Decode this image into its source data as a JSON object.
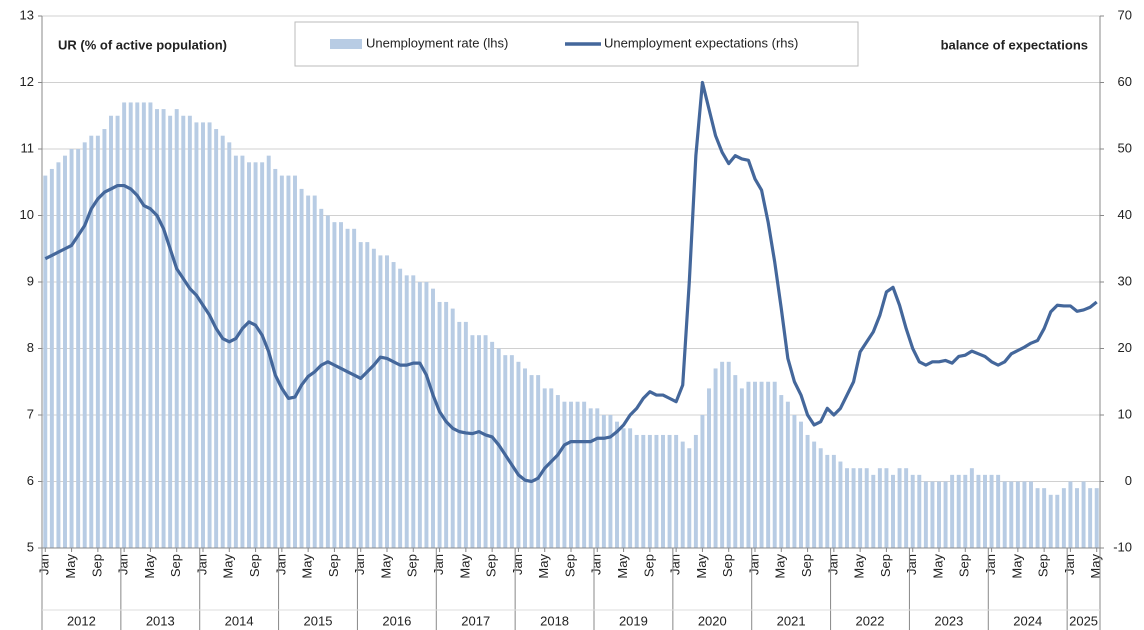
{
  "chart_data": {
    "type": "bar-line",
    "ylabel": "UR (% of active population)",
    "y2label": "balance of expectations",
    "categories": [
      "Jan",
      null,
      null,
      null,
      "May",
      null,
      null,
      null,
      "Sep",
      null,
      null,
      null,
      "Jan",
      null,
      null,
      null,
      "May",
      null,
      null,
      null,
      "Sep",
      null,
      null,
      null,
      "Jan",
      null,
      null,
      null,
      "May",
      null,
      null,
      null,
      "Sep",
      null,
      null,
      null,
      "Jan",
      null,
      null,
      null,
      "May",
      null,
      null,
      null,
      "Sep",
      null,
      null,
      null,
      "Jan",
      null,
      null,
      null,
      "May",
      null,
      null,
      null,
      "Sep",
      null,
      null,
      null,
      "Jan",
      null,
      null,
      null,
      "May",
      null,
      null,
      null,
      "Sep",
      null,
      null,
      null,
      "Jan",
      null,
      null,
      null,
      "May",
      null,
      null,
      null,
      "Sep",
      null,
      null,
      null,
      "Jan",
      null,
      null,
      null,
      "May",
      null,
      null,
      null,
      "Sep",
      null,
      null,
      null,
      "Jan",
      null,
      null,
      null,
      "May",
      null,
      null,
      null,
      "Sep",
      null,
      null,
      null,
      "Jan",
      null,
      null,
      null,
      "May",
      null,
      null,
      null,
      "Sep",
      null,
      null,
      null,
      "Jan",
      null,
      null,
      null,
      "May",
      null,
      null,
      null,
      "Sep",
      null,
      null,
      null,
      "Jan",
      null,
      null,
      null,
      "May",
      null,
      null,
      null,
      "Sep",
      null,
      null,
      null,
      "Jan",
      null,
      null,
      null,
      "May",
      null,
      null,
      null,
      "Sep",
      null,
      null,
      null,
      "Jan",
      null,
      null,
      null,
      "May"
    ],
    "years": [
      "2012",
      "2013",
      "2014",
      "2015",
      "2016",
      "2017",
      "2018",
      "2019",
      "2020",
      "2021",
      "2022",
      "2023",
      "2024",
      "2025"
    ],
    "series": [
      {
        "name": "Unemployment rate (lhs)",
        "type": "bar",
        "axis": "y",
        "color": "#b8cce4",
        "values": [
          10.6,
          10.7,
          10.8,
          10.9,
          11.0,
          11.0,
          11.1,
          11.2,
          11.2,
          11.3,
          11.5,
          11.5,
          11.7,
          11.7,
          11.7,
          11.7,
          11.7,
          11.6,
          11.6,
          11.5,
          11.6,
          11.5,
          11.5,
          11.4,
          11.4,
          11.4,
          11.3,
          11.2,
          11.1,
          10.9,
          10.9,
          10.8,
          10.8,
          10.8,
          10.9,
          10.7,
          10.6,
          10.6,
          10.6,
          10.4,
          10.3,
          10.3,
          10.1,
          10.0,
          9.9,
          9.9,
          9.8,
          9.8,
          9.6,
          9.6,
          9.5,
          9.4,
          9.4,
          9.3,
          9.2,
          9.1,
          9.1,
          9.0,
          9.0,
          8.9,
          8.7,
          8.7,
          8.6,
          8.4,
          8.4,
          8.2,
          8.2,
          8.2,
          8.1,
          8.0,
          7.9,
          7.9,
          7.8,
          7.7,
          7.6,
          7.6,
          7.4,
          7.4,
          7.3,
          7.2,
          7.2,
          7.2,
          7.2,
          7.1,
          7.1,
          7.0,
          7.0,
          6.9,
          6.8,
          6.8,
          6.7,
          6.7,
          6.7,
          6.7,
          6.7,
          6.7,
          6.7,
          6.6,
          6.5,
          6.7,
          7.0,
          7.4,
          7.7,
          7.8,
          7.8,
          7.6,
          7.4,
          7.5,
          7.5,
          7.5,
          7.5,
          7.5,
          7.3,
          7.2,
          7.0,
          6.9,
          6.7,
          6.6,
          6.5,
          6.4,
          6.4,
          6.3,
          6.2,
          6.2,
          6.2,
          6.2,
          6.1,
          6.2,
          6.2,
          6.1,
          6.2,
          6.2,
          6.1,
          6.1,
          6.0,
          6.0,
          6.0,
          6.0,
          6.1,
          6.1,
          6.1,
          6.2,
          6.1,
          6.1,
          6.1,
          6.1,
          6.0,
          6.0,
          6.0,
          6.0,
          6.0,
          5.9,
          5.9,
          5.8,
          5.8,
          5.9,
          6.0,
          5.9,
          6.0,
          5.9,
          5.9
        ]
      },
      {
        "name": "Unemployment expectations (rhs)",
        "type": "line",
        "axis": "y2",
        "color": "#44679b",
        "values": [
          33.5,
          34,
          34.5,
          35,
          35.5,
          37,
          38.5,
          41,
          42.5,
          43.5,
          44,
          44.5,
          44.5,
          44,
          43,
          41.5,
          41,
          40,
          38,
          35,
          32,
          30.5,
          29,
          28,
          26.5,
          25,
          23,
          21.5,
          21,
          21.5,
          23,
          24,
          23.5,
          22,
          19.5,
          16,
          14,
          12.5,
          12.7,
          14.5,
          15.8,
          16.5,
          17.5,
          18,
          17.5,
          17,
          16.5,
          16,
          15.5,
          16.5,
          17.5,
          18.7,
          18.5,
          18,
          17.5,
          17.5,
          17.8,
          17.8,
          16,
          13,
          10.5,
          9,
          8,
          7.5,
          7.3,
          7.2,
          7.5,
          7,
          6.7,
          5.5,
          4,
          2.5,
          1,
          0.2,
          0,
          0.5,
          2,
          3,
          4,
          5.5,
          6,
          6,
          6,
          6,
          6.5,
          6.5,
          6.7,
          7.5,
          8.5,
          10,
          11,
          12.5,
          13.5,
          13,
          13,
          12.5,
          12,
          14.5,
          30,
          49,
          60,
          56,
          52,
          49.5,
          47.8,
          49,
          48.5,
          48.3,
          45.5,
          43.8,
          39,
          33,
          26,
          18.5,
          15,
          13,
          10,
          8.5,
          9,
          11,
          10,
          11,
          13,
          15,
          19.5,
          21,
          22.5,
          25,
          28.5,
          29.2,
          26.5,
          23,
          20,
          18,
          17.5,
          18,
          18,
          18.2,
          17.8,
          18.8,
          19,
          19.6,
          19.2,
          18.8,
          18,
          17.5,
          18,
          19.2,
          19.7,
          20.2,
          20.8,
          21.2,
          23,
          25.5,
          26.5,
          26.4,
          26.4,
          25.6,
          25.8,
          26.2,
          27
        ]
      }
    ],
    "ylim": [
      5,
      13
    ],
    "yticks": [
      5,
      6,
      7,
      8,
      9,
      10,
      11,
      12,
      13
    ],
    "y2lim": [
      -10,
      70
    ],
    "y2ticks": [
      -10,
      0,
      10,
      20,
      30,
      40,
      50,
      60,
      70
    ],
    "grid": true
  }
}
